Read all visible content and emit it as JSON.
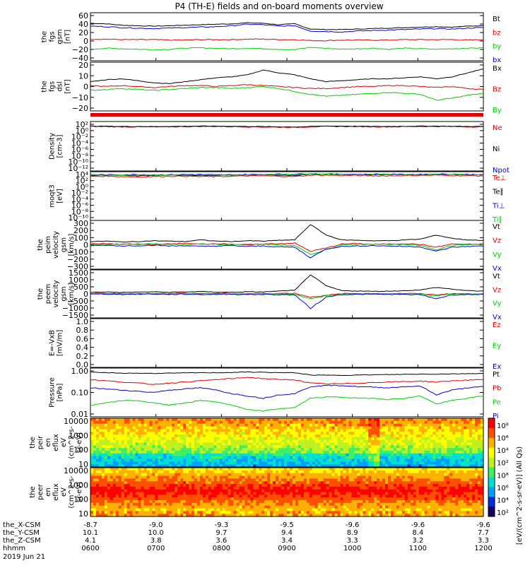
{
  "title": "P4 (TH-E) fields and on-board moments overview",
  "colors": {
    "black": "#000000",
    "red": "#e00000",
    "green": "#00d000",
    "blue": "#0000e0"
  },
  "chart_data": [
    {
      "type": "line",
      "ylabel_lines": [
        "the",
        "fgs",
        "gsm",
        "[nT]"
      ],
      "yticks": [
        "60",
        "40",
        "20",
        "0",
        "−20",
        "−40"
      ],
      "ylim": [
        -40,
        60
      ],
      "log": false,
      "series": [
        {
          "name": "Bt",
          "color": "black",
          "values": [
            38,
            37,
            34,
            33,
            32,
            33,
            34,
            35,
            36,
            37,
            39,
            38,
            35,
            37,
            26,
            25,
            25,
            26,
            27,
            28,
            29,
            30,
            31,
            30,
            32,
            33
          ]
        },
        {
          "name": "bz",
          "color": "red",
          "values": [
            5,
            5,
            4,
            4,
            4,
            3,
            3,
            4,
            4,
            4,
            5,
            5,
            4,
            4,
            2,
            2,
            3,
            3,
            3,
            3,
            4,
            4,
            4,
            4,
            3,
            4
          ]
        },
        {
          "name": "by",
          "color": "green",
          "values": [
            -16,
            -14,
            -15,
            -16,
            -17,
            -16,
            -14,
            -13,
            -14,
            -15,
            -14,
            -15,
            -16,
            -17,
            -12,
            -14,
            -16,
            -15,
            -14,
            -16,
            -14,
            -15,
            -16,
            -15,
            -14,
            -13
          ]
        },
        {
          "name": "bx",
          "color": "blue",
          "values": [
            32,
            31,
            29,
            28,
            27,
            28,
            29,
            30,
            31,
            33,
            36,
            35,
            32,
            33,
            22,
            21,
            20,
            22,
            23,
            24,
            25,
            26,
            27,
            26,
            28,
            29
          ]
        }
      ]
    },
    {
      "type": "line",
      "ylabel_lines": [
        "the",
        "fgs",
        "dsl",
        "[nT]"
      ],
      "yticks": [
        "20",
        "10",
        "0",
        "−10",
        "−20"
      ],
      "ylim": [
        -25,
        25
      ],
      "log": false,
      "series": [
        {
          "name": "Bx",
          "color": "black",
          "values": [
            5,
            7,
            8,
            6,
            4,
            3,
            5,
            7,
            9,
            10,
            12,
            17,
            14,
            12,
            8,
            5,
            6,
            7,
            8,
            8,
            9,
            10,
            8,
            10,
            14,
            18
          ]
        },
        {
          "name": "Bz",
          "color": "red",
          "values": [
            1,
            0,
            1,
            0,
            -1,
            0,
            1,
            1,
            0,
            1,
            2,
            1,
            0,
            -1,
            -2,
            -2,
            -1,
            0,
            0,
            1,
            1,
            0,
            -1,
            0,
            -2,
            -3
          ]
        },
        {
          "name": "By",
          "color": "green",
          "values": [
            -4,
            -3,
            -2,
            -3,
            -4,
            -3,
            -2,
            -1,
            -1,
            -2,
            -1,
            0,
            -2,
            -5,
            -8,
            -10,
            -9,
            -8,
            -7,
            -6,
            -7,
            -8,
            -14,
            -12,
            -9,
            -7
          ]
        }
      ]
    },
    {
      "type": "line",
      "ylabel_lines": [
        "Density",
        "[cm-3]"
      ],
      "yticks": [
        "10²",
        "10⁰",
        "10⁻²",
        "10⁻⁴",
        "10⁻⁶",
        "10⁻⁸",
        "10⁻¹⁰",
        "10⁻¹²"
      ],
      "ylim": [
        -12,
        2
      ],
      "log": true,
      "series": [
        {
          "name": "Ne",
          "color": "red",
          "values": [
            0.6,
            0.55,
            0.5,
            0.5,
            0.45,
            0.5,
            0.55,
            0.6,
            0.6,
            0.55,
            0.5,
            0.45,
            0.4,
            0.35,
            0.5,
            0.6,
            0.6,
            0.55,
            0.5,
            0.5,
            0.55,
            0.6,
            0.6,
            0.55,
            0.5,
            0.5
          ]
        },
        {
          "name": "Ni",
          "color": "black",
          "values": [
            0.7,
            0.65,
            0.6,
            0.6,
            0.55,
            0.6,
            0.65,
            0.7,
            0.7,
            0.65,
            0.6,
            0.55,
            0.5,
            0.45,
            0.6,
            0.7,
            0.7,
            0.65,
            0.6,
            0.6,
            0.65,
            0.7,
            0.7,
            0.65,
            0.6,
            0.6
          ]
        },
        {
          "name": "Npot",
          "color": "blue",
          "values": []
        }
      ]
    },
    {
      "type": "line",
      "ylabel_lines": [
        "moqt3",
        "[eV]"
      ],
      "yticks": [
        "10⁴",
        "10²",
        "10⁰",
        "10⁻²",
        "10⁻⁴",
        "10⁻⁶",
        "10⁻⁸",
        "10⁻¹⁰"
      ],
      "ylim": [
        -10,
        4
      ],
      "log": true,
      "series": [
        {
          "name": "Te⊥",
          "color": "red",
          "values": [
            2.6,
            2.7,
            2.6,
            2.5,
            2.6,
            2.7,
            2.7,
            2.6,
            2.6,
            2.7,
            2.8,
            2.8,
            2.7,
            2.6,
            3.0,
            3.0,
            2.9,
            2.9,
            2.8,
            2.8,
            2.9,
            2.9,
            3.0,
            2.9,
            2.8,
            2.8
          ]
        },
        {
          "name": "Te∥",
          "color": "black",
          "values": [
            2.9,
            3.0,
            2.9,
            2.8,
            2.9,
            3.0,
            3.0,
            2.9,
            2.9,
            3.0,
            3.1,
            3.1,
            3.0,
            2.9,
            3.3,
            3.3,
            3.2,
            3.2,
            3.1,
            3.1,
            3.2,
            3.2,
            3.3,
            3.2,
            3.1,
            3.1
          ]
        },
        {
          "name": "Ti⊥",
          "color": "blue",
          "values": [
            3.2,
            3.1,
            3.1,
            3.2,
            3.1,
            3.1,
            3.2,
            3.2,
            3.1,
            3.1,
            3.2,
            3.2,
            3.3,
            3.3,
            3.4,
            3.3,
            3.3,
            3.2,
            3.3,
            3.3,
            3.2,
            3.2,
            3.3,
            3.3,
            3.2,
            3.2
          ]
        },
        {
          "name": "Ti∥",
          "color": "green",
          "values": [
            3.1,
            3.0,
            3.0,
            3.1,
            3.0,
            3.0,
            3.1,
            3.1,
            3.0,
            3.0,
            3.1,
            3.1,
            3.2,
            3.2,
            3.3,
            3.2,
            3.2,
            3.1,
            3.2,
            3.2,
            3.1,
            3.1,
            3.2,
            3.2,
            3.1,
            3.1
          ]
        }
      ]
    },
    {
      "type": "line",
      "ylabel_lines": [
        "the",
        "peim",
        "velocity",
        "gsm",
        "[km/s]"
      ],
      "yticks": [
        "300",
        "200",
        "100",
        "0",
        "−100",
        "−200",
        "−300"
      ],
      "ylim": [
        -300,
        300
      ],
      "log": false,
      "series": [
        {
          "name": "Vt",
          "color": "black",
          "values": [
            40,
            45,
            35,
            40,
            50,
            45,
            40,
            60,
            45,
            40,
            50,
            45,
            55,
            60,
            250,
            120,
            60,
            55,
            50,
            50,
            60,
            70,
            120,
            80,
            60,
            55
          ]
        },
        {
          "name": "Vz",
          "color": "red",
          "values": [
            10,
            15,
            5,
            10,
            0,
            10,
            20,
            5,
            15,
            10,
            -5,
            10,
            15,
            20,
            -80,
            -40,
            10,
            15,
            5,
            10,
            15,
            5,
            -30,
            10,
            5,
            10
          ]
        },
        {
          "name": "Vy",
          "color": "green",
          "values": [
            5,
            0,
            10,
            5,
            15,
            5,
            0,
            10,
            5,
            0,
            10,
            5,
            0,
            -10,
            -120,
            -60,
            0,
            5,
            10,
            5,
            0,
            -5,
            -60,
            -10,
            5,
            0
          ]
        },
        {
          "name": "Vx",
          "color": "blue",
          "values": [
            -10,
            -5,
            -15,
            -10,
            -5,
            -15,
            -10,
            -20,
            -15,
            -10,
            -20,
            -15,
            -25,
            -30,
            -160,
            -50,
            -20,
            -15,
            -10,
            -15,
            -20,
            -25,
            -80,
            -30,
            -20,
            -15
          ]
        }
      ]
    },
    {
      "type": "line",
      "ylabel_lines": [
        "the",
        "peem",
        "velocity",
        "gsm",
        "[km/s]"
      ],
      "yticks": [
        "1500",
        "1000",
        "500",
        "0",
        "−500",
        "−1000",
        "−1500"
      ],
      "ylim": [
        -1500,
        1500
      ],
      "log": false,
      "series": [
        {
          "name": "Vt",
          "color": "black",
          "values": [
            100,
            120,
            90,
            110,
            130,
            100,
            120,
            150,
            110,
            100,
            130,
            120,
            180,
            220,
            1200,
            500,
            200,
            180,
            160,
            170,
            200,
            250,
            400,
            300,
            200,
            180
          ]
        },
        {
          "name": "Vz",
          "color": "red",
          "values": [
            20,
            30,
            10,
            20,
            0,
            20,
            40,
            10,
            30,
            20,
            -10,
            20,
            30,
            40,
            -200,
            -100,
            20,
            30,
            10,
            20,
            30,
            10,
            -60,
            20,
            10,
            20
          ]
        },
        {
          "name": "Vy",
          "color": "green",
          "values": [
            10,
            0,
            20,
            10,
            30,
            10,
            0,
            20,
            10,
            0,
            20,
            10,
            0,
            -20,
            -300,
            -120,
            0,
            10,
            20,
            10,
            0,
            -10,
            -120,
            -20,
            10,
            0
          ]
        },
        {
          "name": "Vx",
          "color": "blue",
          "values": [
            -20,
            -10,
            -30,
            -20,
            -10,
            -30,
            -20,
            -40,
            -30,
            -20,
            -40,
            -30,
            -50,
            -60,
            -900,
            -200,
            -40,
            -30,
            -20,
            -30,
            -40,
            -50,
            -300,
            -60,
            -40,
            -30
          ]
        }
      ]
    },
    {
      "type": "line",
      "ylabel_lines": [
        "E=-VxB",
        "[mV/m]"
      ],
      "yticks": [
        "1.0",
        "0.8",
        "0.6",
        "0.4",
        "0.2",
        "0.0"
      ],
      "ylim": [
        0,
        1
      ],
      "log": false,
      "series": [
        {
          "name": "Ez",
          "color": "red",
          "values": []
        },
        {
          "name": "Ey",
          "color": "green",
          "values": []
        },
        {
          "name": "Ex",
          "color": "blue",
          "values": []
        }
      ]
    },
    {
      "type": "line",
      "ylabel_lines": [
        "Pressure",
        "[nPa]"
      ],
      "yticks": [
        "1.00",
        "0.10",
        "0.01"
      ],
      "ylim": [
        -2,
        0.1
      ],
      "log": true,
      "series": [
        {
          "name": "Pt",
          "color": "black",
          "values": [
            -0.08,
            -0.1,
            -0.12,
            -0.12,
            -0.13,
            -0.12,
            -0.11,
            -0.1,
            -0.1,
            -0.09,
            -0.07,
            -0.08,
            -0.1,
            -0.1,
            -0.2,
            -0.21,
            -0.21,
            -0.2,
            -0.19,
            -0.18,
            -0.17,
            -0.16,
            -0.16,
            -0.15,
            -0.14,
            -0.13
          ]
        },
        {
          "name": "Pb",
          "color": "red",
          "values": [
            -0.4,
            -0.45,
            -0.5,
            -0.55,
            -0.6,
            -0.55,
            -0.5,
            -0.45,
            -0.4,
            -0.35,
            -0.3,
            -0.35,
            -0.4,
            -0.4,
            -0.55,
            -0.58,
            -0.58,
            -0.55,
            -0.52,
            -0.5,
            -0.48,
            -0.46,
            -0.5,
            -0.45,
            -0.42,
            -0.4
          ]
        },
        {
          "name": "Pe",
          "color": "green",
          "values": [
            -1.5,
            -1.4,
            -1.3,
            -1.3,
            -1.4,
            -1.5,
            -1.4,
            -1.3,
            -1.35,
            -1.5,
            -1.7,
            -1.75,
            -1.65,
            -1.6,
            -1.2,
            -1.15,
            -1.15,
            -1.2,
            -1.2,
            -1.25,
            -1.2,
            -1.1,
            -1.45,
            -1.3,
            -1.2,
            -1.1
          ]
        },
        {
          "name": "Pi",
          "color": "blue",
          "values": [
            -0.75,
            -0.8,
            -0.85,
            -0.9,
            -0.95,
            -0.85,
            -0.8,
            -0.75,
            -0.85,
            -1.0,
            -1.1,
            -1.2,
            -1.05,
            -1.0,
            -0.7,
            -0.65,
            -0.65,
            -0.7,
            -0.72,
            -0.75,
            -0.7,
            -0.68,
            -1.05,
            -0.85,
            -0.75,
            -0.7
          ]
        }
      ]
    },
    {
      "type": "heatmap",
      "ylabel_lines": [
        "the",
        "peir",
        "en",
        "eflux",
        "eV",
        "(cm^2-s-",
        "sr-eV)"
      ],
      "yticks": [
        "10000",
        "1000",
        "100",
        "10"
      ],
      "ylim": [
        1,
        4.3
      ],
      "log": true
    },
    {
      "type": "heatmap",
      "ylabel_lines": [
        "the",
        "peer",
        "en",
        "eflux",
        "eV",
        "(cm^2-s-",
        "sr-eV)"
      ],
      "yticks": [
        "10000",
        "1000",
        "100",
        "10"
      ],
      "ylim": [
        1,
        4.3
      ],
      "log": true
    }
  ],
  "colorbar": {
    "ticks": [
      "10⁸",
      "10⁶",
      "10⁴",
      "10²",
      "10⁸",
      "10⁶",
      "10⁴",
      "10²"
    ],
    "label": "[eV/(cm^2-s-sr-eV)] (All Qs)"
  },
  "xaxis": {
    "rows": [
      {
        "label": "the_X-CSM",
        "values": [
          "-8.7",
          "-9.0",
          "-9.3",
          "-9.5",
          "-9.6",
          "-9.6",
          "-9.6"
        ]
      },
      {
        "label": "the_Y-CSM",
        "values": [
          "10.1",
          "10.0",
          "9.7",
          "9.4",
          "8.9",
          "8.4",
          "7.7"
        ]
      },
      {
        "label": "the_Z-CSM",
        "values": [
          "4.1",
          "3.8",
          "3.6",
          "3.4",
          "3.3",
          "3.2",
          "3.3"
        ]
      },
      {
        "label": "hhmm",
        "values": [
          "0600",
          "0700",
          "0800",
          "0900",
          "1000",
          "1100",
          "1200"
        ]
      }
    ],
    "date": "2019 Jun 21"
  }
}
